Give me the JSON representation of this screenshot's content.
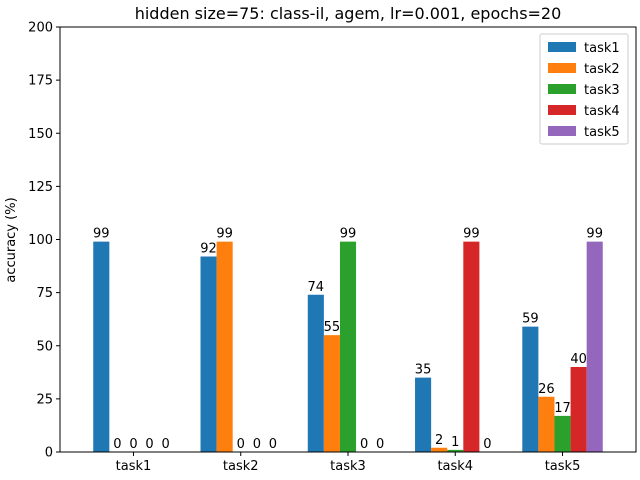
{
  "chart_data": {
    "type": "bar",
    "title": "hidden size=75: class-il, agem, lr=0.001, epochs=20",
    "xlabel": "",
    "ylabel": "accuracy (%)",
    "ylim": [
      0,
      200
    ],
    "yticks": [
      0,
      25,
      50,
      75,
      100,
      125,
      150,
      175,
      200
    ],
    "categories": [
      "task1",
      "task2",
      "task3",
      "task4",
      "task5"
    ],
    "series": [
      {
        "name": "task1",
        "color": "#1f77b4",
        "values": [
          99,
          92,
          74,
          35,
          59
        ]
      },
      {
        "name": "task2",
        "color": "#ff7f0e",
        "values": [
          0,
          99,
          55,
          2,
          26
        ]
      },
      {
        "name": "task3",
        "color": "#2ca02c",
        "values": [
          0,
          0,
          99,
          1,
          17
        ]
      },
      {
        "name": "task4",
        "color": "#d62728",
        "values": [
          0,
          0,
          0,
          99,
          40
        ]
      },
      {
        "name": "task5",
        "color": "#9467bd",
        "values": [
          0,
          0,
          0,
          0,
          99
        ]
      }
    ],
    "legend_position": "top-right",
    "grid": false
  }
}
